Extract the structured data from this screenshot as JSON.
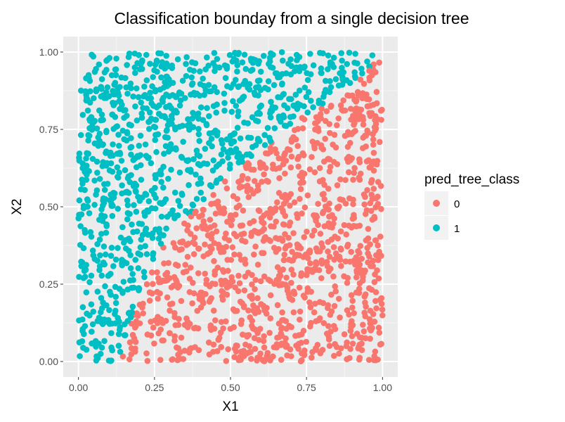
{
  "chart_data": {
    "type": "scatter",
    "title": "Classification bounday from a single decision tree",
    "xlabel": "X1",
    "ylabel": "X2",
    "xlim": [
      0,
      1
    ],
    "ylim": [
      0,
      1
    ],
    "x_ticks": [
      "0.00",
      "0.25",
      "0.50",
      "0.75",
      "1.00"
    ],
    "y_ticks": [
      "0.00",
      "0.25",
      "0.50",
      "0.75",
      "1.00"
    ],
    "grid": true,
    "legend": {
      "title": "pred_tree_class",
      "placement": "right",
      "entries": [
        {
          "label": "0",
          "color": "#F8766D"
        },
        {
          "label": "1",
          "color": "#00BFC4"
        }
      ]
    },
    "colors": {
      "class_0": "#F8766D",
      "class_1": "#00BFC4",
      "panel": "#EBEBEB",
      "grid": "#FFFFFF"
    },
    "n_points": 2000,
    "boundary": {
      "description_points": [
        [
          0.13,
          0.0
        ],
        [
          0.22,
          0.25
        ],
        [
          0.29,
          0.4
        ],
        [
          0.4,
          0.5
        ],
        [
          0.5,
          0.6
        ],
        [
          0.62,
          0.7
        ],
        [
          0.75,
          0.8
        ],
        [
          0.88,
          0.87
        ],
        [
          1.0,
          1.0
        ]
      ],
      "class_below_right": "0",
      "class_above_left": "1"
    }
  }
}
